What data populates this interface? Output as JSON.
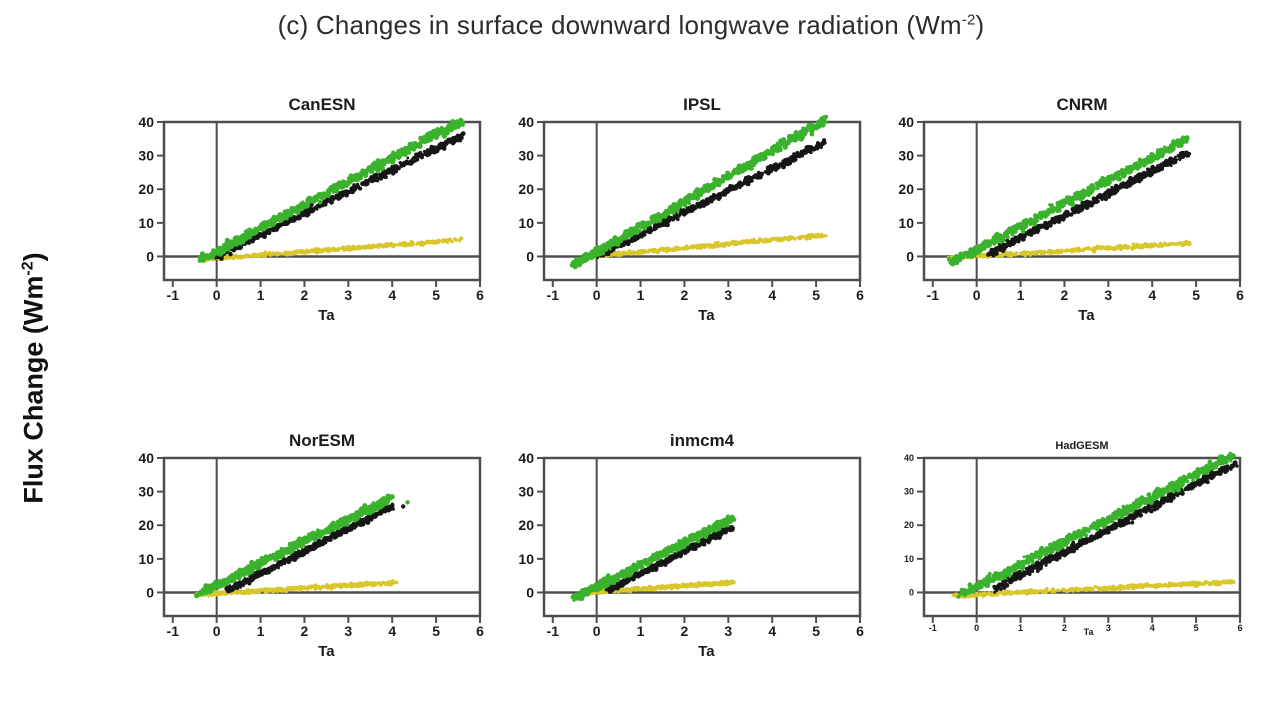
{
  "figure": {
    "title_pre": "(c) Changes in surface downward longwave radiation (Wm",
    "title_sup": "-2",
    "title_post": ")",
    "ylabel_pre": "Flux Change (Wm",
    "ylabel_sup": "-2",
    "ylabel_post": ")"
  },
  "colors": {
    "green": "#3bb22d",
    "black": "#161616",
    "yellow": "#d9c62b",
    "axis": "#4e4e4e",
    "text": "#1c1c1c",
    "background": "#ffffff"
  },
  "chart_data": [
    {
      "type": "scatter",
      "title": "CanESN",
      "xlabel": "Ta",
      "xlim": [
        -1.2,
        6
      ],
      "ylim": [
        -7,
        40
      ],
      "x_ticks": [
        -1,
        0,
        1,
        2,
        3,
        4,
        5,
        6
      ],
      "y_ticks": [
        0,
        10,
        20,
        30,
        40
      ],
      "grid": false,
      "small_labels": false,
      "series": [
        {
          "name": "yellow-band",
          "color": "#d9c62b",
          "x": [
            -0.35,
            5.6
          ],
          "y": [
            -0.9,
            5.0
          ],
          "spread": 0.8,
          "n": 450,
          "size": 1.6
        },
        {
          "name": "black-band",
          "color": "#161616",
          "x": [
            0.0,
            5.6
          ],
          "y": [
            0.0,
            36.0
          ],
          "spread": 1.3,
          "n": 520,
          "size": 1.9
        },
        {
          "name": "green-band",
          "color": "#3bb22d",
          "x": [
            -0.35,
            5.6
          ],
          "y": [
            -1.0,
            40.5
          ],
          "spread": 1.7,
          "n": 680,
          "size": 2.1
        }
      ]
    },
    {
      "type": "scatter",
      "title": "IPSL",
      "xlabel": "Ta",
      "xlim": [
        -1.2,
        6
      ],
      "ylim": [
        -7,
        40
      ],
      "x_ticks": [
        -1,
        0,
        1,
        2,
        3,
        4,
        5,
        6
      ],
      "y_ticks": [
        0,
        10,
        20,
        30,
        40
      ],
      "grid": false,
      "small_labels": false,
      "series": [
        {
          "name": "yellow-band",
          "color": "#d9c62b",
          "x": [
            0.0,
            5.2
          ],
          "y": [
            0.2,
            6.3
          ],
          "spread": 0.8,
          "n": 450,
          "size": 1.6
        },
        {
          "name": "black-band",
          "color": "#161616",
          "x": [
            0.0,
            5.2
          ],
          "y": [
            0.0,
            34.0
          ],
          "spread": 1.3,
          "n": 520,
          "size": 1.9
        },
        {
          "name": "green-band",
          "color": "#3bb22d",
          "x": [
            -0.55,
            5.2
          ],
          "y": [
            -2.8,
            40.5
          ],
          "spread": 1.7,
          "n": 680,
          "size": 2.1
        }
      ]
    },
    {
      "type": "scatter",
      "title": "CNRM",
      "xlabel": "Ta",
      "xlim": [
        -1.2,
        6
      ],
      "ylim": [
        -7,
        40
      ],
      "x_ticks": [
        -1,
        0,
        1,
        2,
        3,
        4,
        5,
        6
      ],
      "y_ticks": [
        0,
        10,
        20,
        30,
        40
      ],
      "grid": false,
      "small_labels": false,
      "series": [
        {
          "name": "yellow-band",
          "color": "#d9c62b",
          "x": [
            -0.6,
            4.85
          ],
          "y": [
            -0.4,
            4.0
          ],
          "spread": 0.8,
          "n": 450,
          "size": 1.6
        },
        {
          "name": "black-band",
          "color": "#161616",
          "x": [
            0.3,
            4.85
          ],
          "y": [
            0.8,
            31.0
          ],
          "spread": 1.4,
          "n": 520,
          "size": 1.9
        },
        {
          "name": "green-band",
          "color": "#3bb22d",
          "x": [
            -0.6,
            4.8
          ],
          "y": [
            -2.0,
            35.0
          ],
          "spread": 1.7,
          "n": 680,
          "size": 2.1
        }
      ]
    },
    {
      "type": "scatter",
      "title": "NorESM",
      "xlabel": "Ta",
      "xlim": [
        -1.2,
        6
      ],
      "ylim": [
        -7,
        40
      ],
      "x_ticks": [
        -1,
        0,
        1,
        2,
        3,
        4,
        5,
        6
      ],
      "y_ticks": [
        0,
        10,
        20,
        30,
        40
      ],
      "grid": false,
      "small_labels": false,
      "extra_points": [
        {
          "x": 4.35,
          "y": 26.8,
          "color": "#3bb22d"
        },
        {
          "x": 4.25,
          "y": 25.6,
          "color": "#161616"
        }
      ],
      "series": [
        {
          "name": "yellow-band",
          "color": "#d9c62b",
          "x": [
            -0.45,
            4.1
          ],
          "y": [
            -0.7,
            3.0
          ],
          "spread": 0.8,
          "n": 450,
          "size": 1.6
        },
        {
          "name": "black-band",
          "color": "#161616",
          "x": [
            0.25,
            4.05
          ],
          "y": [
            0.6,
            26.0
          ],
          "spread": 1.2,
          "n": 500,
          "size": 1.9
        },
        {
          "name": "green-band",
          "color": "#3bb22d",
          "x": [
            -0.4,
            3.95
          ],
          "y": [
            -0.5,
            28.0
          ],
          "spread": 1.6,
          "n": 650,
          "size": 2.1
        }
      ]
    },
    {
      "type": "scatter",
      "title": "inmcm4",
      "xlabel": "Ta",
      "xlim": [
        -1.2,
        6
      ],
      "ylim": [
        -7,
        40
      ],
      "x_ticks": [
        -1,
        0,
        1,
        2,
        3,
        4,
        5,
        6
      ],
      "y_ticks": [
        0,
        10,
        20,
        30,
        40
      ],
      "grid": false,
      "small_labels": false,
      "series": [
        {
          "name": "yellow-band",
          "color": "#d9c62b",
          "x": [
            -0.35,
            3.1
          ],
          "y": [
            -0.2,
            3.0
          ],
          "spread": 0.7,
          "n": 420,
          "size": 1.6
        },
        {
          "name": "black-band",
          "color": "#161616",
          "x": [
            0.25,
            3.1
          ],
          "y": [
            0.6,
            19.5
          ],
          "spread": 1.1,
          "n": 480,
          "size": 1.9
        },
        {
          "name": "green-band",
          "color": "#3bb22d",
          "x": [
            -0.5,
            3.1
          ],
          "y": [
            -1.6,
            22.0
          ],
          "spread": 1.5,
          "n": 640,
          "size": 2.1
        }
      ]
    },
    {
      "type": "scatter",
      "title": "HadGESM",
      "xlabel": "Ta",
      "xlim": [
        -1.2,
        6
      ],
      "ylim": [
        -7,
        40
      ],
      "x_ticks": [
        -1,
        0,
        1,
        2,
        3,
        4,
        5,
        6
      ],
      "y_ticks": [
        0,
        10,
        20,
        30,
        40
      ],
      "grid": false,
      "small_labels": true,
      "series": [
        {
          "name": "yellow-band",
          "color": "#d9c62b",
          "x": [
            -0.55,
            5.85
          ],
          "y": [
            -1.0,
            3.2
          ],
          "spread": 0.8,
          "n": 480,
          "size": 1.6
        },
        {
          "name": "black-band",
          "color": "#161616",
          "x": [
            0.4,
            5.9
          ],
          "y": [
            1.2,
            38.5
          ],
          "spread": 1.5,
          "n": 540,
          "size": 1.9
        },
        {
          "name": "green-band",
          "color": "#3bb22d",
          "x": [
            -0.4,
            5.85
          ],
          "y": [
            -1.0,
            40.8
          ],
          "spread": 1.8,
          "n": 700,
          "size": 2.1
        }
      ]
    }
  ]
}
